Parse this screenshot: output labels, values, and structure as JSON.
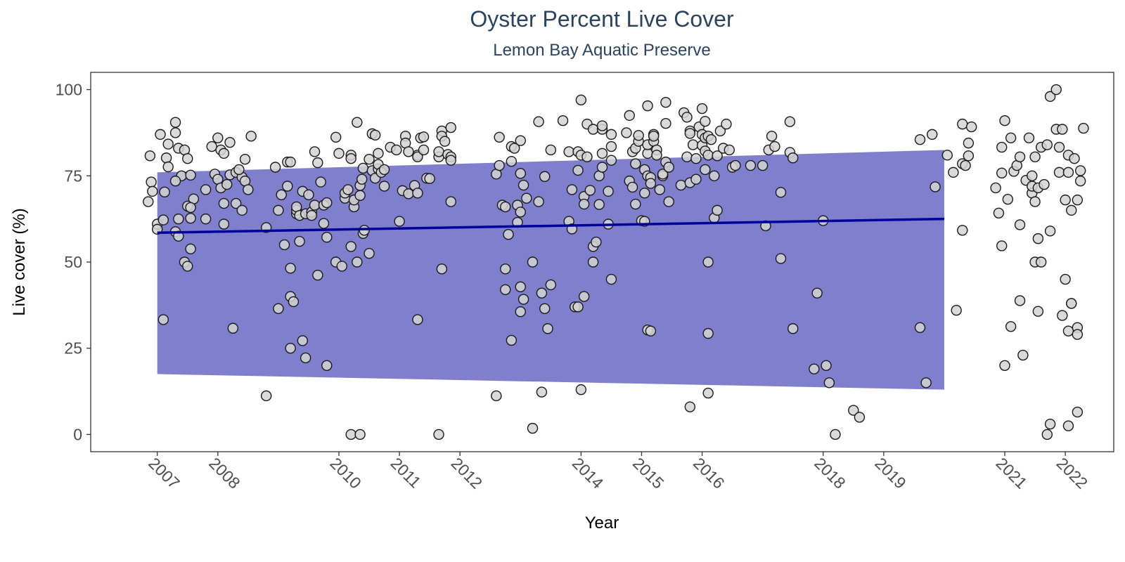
{
  "chart_data": {
    "type": "scatter",
    "title": "Oyster Percent Live Cover",
    "subtitle": "Lemon Bay Aquatic Preserve",
    "xlabel": "Year",
    "ylabel": "Live cover (%)",
    "xlim": [
      2005.9,
      2022.8
    ],
    "ylim": [
      -5,
      105
    ],
    "x_ticks": [
      2007,
      2008,
      2010,
      2011,
      2012,
      2014,
      2015,
      2016,
      2018,
      2019,
      2021,
      2022
    ],
    "y_ticks": [
      0,
      25,
      50,
      75,
      100
    ],
    "grid": false,
    "legend": "none",
    "colors": {
      "point_fill": "#d3d3d3",
      "point_stroke": "#1a1a1a",
      "ribbon": "#00009b",
      "trend": "#00009b",
      "title": "#2c435e"
    },
    "trend": {
      "x": [
        2007.0,
        2020.0
      ],
      "y": [
        58.5,
        62.5
      ]
    },
    "ribbon": {
      "x": [
        2007.0,
        2020.0
      ],
      "lower": [
        17.5,
        13.0
      ],
      "upper": [
        76.0,
        82.5
      ]
    },
    "points": [
      [
        2006.85,
        67.5
      ],
      [
        2006.88,
        80.8
      ],
      [
        2006.9,
        73.2
      ],
      [
        2006.92,
        70.5
      ],
      [
        2007.0,
        61.0
      ],
      [
        2007.0,
        59.5
      ],
      [
        2007.1,
        62.2
      ],
      [
        2007.12,
        70.3
      ],
      [
        2007.05,
        87.0
      ],
      [
        2007.15,
        80.2
      ],
      [
        2007.18,
        77.6
      ],
      [
        2007.18,
        84.2
      ],
      [
        2007.1,
        33.3
      ],
      [
        2007.3,
        90.5
      ],
      [
        2007.3,
        87.5
      ],
      [
        2007.35,
        83.0
      ],
      [
        2007.45,
        82.5
      ],
      [
        2007.5,
        80.0
      ],
      [
        2007.4,
        75.0
      ],
      [
        2007.55,
        75.2
      ],
      [
        2007.3,
        73.5
      ],
      [
        2007.6,
        68.3
      ],
      [
        2007.5,
        66.2
      ],
      [
        2007.55,
        65.8
      ],
      [
        2007.35,
        62.5
      ],
      [
        2007.55,
        62.7
      ],
      [
        2007.3,
        58.8
      ],
      [
        2007.35,
        57.5
      ],
      [
        2007.45,
        50.0
      ],
      [
        2007.5,
        48.8
      ],
      [
        2007.55,
        53.8
      ],
      [
        2007.9,
        83.5
      ],
      [
        2008.0,
        86.0
      ],
      [
        2008.05,
        82.5
      ],
      [
        2008.1,
        81.5
      ],
      [
        2008.2,
        84.7
      ],
      [
        2007.95,
        75.5
      ],
      [
        2008.0,
        74.0
      ],
      [
        2008.2,
        75.3
      ],
      [
        2008.3,
        76.0
      ],
      [
        2008.4,
        74.6
      ],
      [
        2008.45,
        73.5
      ],
      [
        2008.05,
        71.5
      ],
      [
        2008.15,
        72.5
      ],
      [
        2008.35,
        76.8
      ],
      [
        2007.8,
        71.0
      ],
      [
        2008.1,
        67.0
      ],
      [
        2008.3,
        67.0
      ],
      [
        2008.4,
        65.0
      ],
      [
        2007.8,
        62.5
      ],
      [
        2008.1,
        61.0
      ],
      [
        2008.25,
        30.8
      ],
      [
        2008.55,
        86.5
      ],
      [
        2008.5,
        71.0
      ],
      [
        2008.45,
        79.8
      ],
      [
        2008.8,
        60.0
      ],
      [
        2008.8,
        11.2
      ],
      [
        2008.95,
        77.5
      ],
      [
        2009.0,
        65.0
      ],
      [
        2009.05,
        69.5
      ],
      [
        2009.1,
        55.0
      ],
      [
        2009.15,
        72.0
      ],
      [
        2009.15,
        79.0
      ],
      [
        2009.2,
        79.0
      ],
      [
        2009.2,
        48.2
      ],
      [
        2009.3,
        64.0
      ],
      [
        2009.3,
        65.0
      ],
      [
        2009.3,
        66.0
      ],
      [
        2009.35,
        56.0
      ],
      [
        2009.35,
        63.5
      ],
      [
        2009.4,
        70.5
      ],
      [
        2009.45,
        64.0
      ],
      [
        2009.5,
        69.5
      ],
      [
        2009.55,
        64.5
      ],
      [
        2009.55,
        63.5
      ],
      [
        2009.6,
        66.5
      ],
      [
        2009.6,
        82.0
      ],
      [
        2009.65,
        46.2
      ],
      [
        2009.7,
        73.2
      ],
      [
        2009.75,
        61.2
      ],
      [
        2009.75,
        66.5
      ],
      [
        2009.8,
        67.2
      ],
      [
        2009.8,
        57.2
      ],
      [
        2009.0,
        36.5
      ],
      [
        2009.2,
        40.0
      ],
      [
        2009.25,
        38.5
      ],
      [
        2009.2,
        25.0
      ],
      [
        2009.4,
        27.2
      ],
      [
        2009.45,
        22.2
      ],
      [
        2009.8,
        20.0
      ],
      [
        2009.65,
        78.8
      ],
      [
        2009.95,
        86.2
      ],
      [
        2010.0,
        81.5
      ],
      [
        2009.95,
        50.0
      ],
      [
        2010.05,
        48.8
      ],
      [
        2010.1,
        68.5
      ],
      [
        2010.1,
        70.0
      ],
      [
        2010.15,
        71.0
      ],
      [
        2010.2,
        54.5
      ],
      [
        2010.2,
        81.0
      ],
      [
        2010.2,
        80.0
      ],
      [
        2010.25,
        66.0
      ],
      [
        2010.25,
        68.0
      ],
      [
        2010.3,
        50.0
      ],
      [
        2010.3,
        90.5
      ],
      [
        2010.35,
        72.2
      ],
      [
        2010.35,
        69.3
      ],
      [
        2010.38,
        74.0
      ],
      [
        2010.4,
        77.2
      ],
      [
        2010.4,
        58.3
      ],
      [
        2010.42,
        59.2
      ],
      [
        2010.5,
        79.8
      ],
      [
        2010.5,
        52.5
      ],
      [
        2010.55,
        87.2
      ],
      [
        2010.55,
        76.5
      ],
      [
        2010.6,
        74.3
      ],
      [
        2010.6,
        86.8
      ],
      [
        2010.65,
        81.5
      ],
      [
        2010.65,
        77.0
      ],
      [
        2010.65,
        78.3
      ],
      [
        2010.7,
        76.0
      ],
      [
        2010.75,
        72.0
      ],
      [
        2010.75,
        76.8
      ],
      [
        2010.2,
        0.0
      ],
      [
        2010.35,
        0.0
      ],
      [
        2010.85,
        83.3
      ],
      [
        2010.95,
        82.5
      ],
      [
        2011.0,
        61.8
      ],
      [
        2011.05,
        70.7
      ],
      [
        2011.1,
        86.5
      ],
      [
        2011.1,
        84.5
      ],
      [
        2011.15,
        82.0
      ],
      [
        2011.15,
        69.8
      ],
      [
        2011.25,
        72.2
      ],
      [
        2011.3,
        81.0
      ],
      [
        2011.3,
        80.5
      ],
      [
        2011.3,
        70.0
      ],
      [
        2011.35,
        86.0
      ],
      [
        2011.4,
        86.3
      ],
      [
        2011.4,
        82.5
      ],
      [
        2011.45,
        74.3
      ],
      [
        2011.5,
        74.2
      ],
      [
        2011.3,
        33.3
      ],
      [
        2011.65,
        80.5
      ],
      [
        2011.65,
        82.0
      ],
      [
        2011.7,
        88.0
      ],
      [
        2011.7,
        86.5
      ],
      [
        2011.75,
        85.0
      ],
      [
        2011.8,
        81.2
      ],
      [
        2011.85,
        80.5
      ],
      [
        2011.85,
        79.5
      ],
      [
        2011.85,
        89.0
      ],
      [
        2011.85,
        67.5
      ],
      [
        2011.7,
        48.0
      ],
      [
        2011.65,
        0.0
      ],
      [
        2012.6,
        75.5
      ],
      [
        2012.65,
        78.0
      ],
      [
        2012.65,
        86.2
      ],
      [
        2012.7,
        66.5
      ],
      [
        2012.75,
        66.0
      ],
      [
        2012.75,
        48.0
      ],
      [
        2012.75,
        42.0
      ],
      [
        2012.8,
        58.0
      ],
      [
        2012.85,
        79.2
      ],
      [
        2012.85,
        83.5
      ],
      [
        2012.85,
        27.3
      ],
      [
        2012.9,
        83.0
      ],
      [
        2012.95,
        61.5
      ],
      [
        2012.95,
        66.5
      ],
      [
        2013.0,
        75.7
      ],
      [
        2013.0,
        85.2
      ],
      [
        2013.0,
        64.5
      ],
      [
        2013.0,
        42.8
      ],
      [
        2013.0,
        35.6
      ],
      [
        2013.05,
        39.2
      ],
      [
        2013.05,
        72.3
      ],
      [
        2013.1,
        68.5
      ],
      [
        2013.2,
        50.0
      ],
      [
        2013.2,
        1.8
      ],
      [
        2013.3,
        90.7
      ],
      [
        2013.3,
        67.5
      ],
      [
        2013.35,
        41.0
      ],
      [
        2013.4,
        36.5
      ],
      [
        2013.4,
        74.8
      ],
      [
        2013.45,
        30.7
      ],
      [
        2013.5,
        43.4
      ],
      [
        2013.5,
        82.5
      ],
      [
        2012.6,
        11.2
      ],
      [
        2013.35,
        12.3
      ],
      [
        2013.7,
        91.0
      ],
      [
        2013.8,
        82.0
      ],
      [
        2013.8,
        61.8
      ],
      [
        2013.85,
        59.6
      ],
      [
        2013.85,
        71.0
      ],
      [
        2013.95,
        82.0
      ],
      [
        2013.9,
        37.0
      ],
      [
        2013.95,
        37.0
      ],
      [
        2014.0,
        97.0
      ],
      [
        2013.95,
        76.6
      ],
      [
        2014.0,
        81.0
      ],
      [
        2014.05,
        69.0
      ],
      [
        2014.05,
        66.8
      ],
      [
        2014.05,
        40.0
      ],
      [
        2014.1,
        80.5
      ],
      [
        2014.1,
        90.0
      ],
      [
        2014.15,
        70.8
      ],
      [
        2014.2,
        88.5
      ],
      [
        2014.2,
        54.5
      ],
      [
        2014.2,
        50.0
      ],
      [
        2014.25,
        55.8
      ],
      [
        2014.3,
        75.0
      ],
      [
        2014.3,
        66.7
      ],
      [
        2014.35,
        77.5
      ],
      [
        2014.35,
        81.5
      ],
      [
        2014.35,
        88.5
      ],
      [
        2014.35,
        89.5
      ],
      [
        2014.45,
        70.5
      ],
      [
        2014.45,
        61.0
      ],
      [
        2014.5,
        87.0
      ],
      [
        2014.5,
        79.5
      ],
      [
        2014.5,
        83.5
      ],
      [
        2014.5,
        45.0
      ],
      [
        2014.0,
        13.0
      ],
      [
        2014.75,
        87.5
      ],
      [
        2014.8,
        92.5
      ],
      [
        2014.8,
        73.5
      ],
      [
        2014.85,
        71.7
      ],
      [
        2014.85,
        82.0
      ],
      [
        2014.9,
        78.5
      ],
      [
        2014.9,
        83.0
      ],
      [
        2014.9,
        66.8
      ],
      [
        2014.95,
        85.0
      ],
      [
        2014.95,
        86.7
      ],
      [
        2015.0,
        62.0
      ],
      [
        2015.05,
        61.8
      ],
      [
        2015.05,
        70.0
      ],
      [
        2015.05,
        76.8
      ],
      [
        2015.1,
        81.5
      ],
      [
        2015.1,
        84.0
      ],
      [
        2015.1,
        95.3
      ],
      [
        2015.1,
        75.0
      ],
      [
        2015.15,
        74.5
      ],
      [
        2015.15,
        72.8
      ],
      [
        2015.2,
        85.0
      ],
      [
        2015.2,
        87.0
      ],
      [
        2015.2,
        86.5
      ],
      [
        2015.25,
        82.5
      ],
      [
        2015.25,
        81.0
      ],
      [
        2015.3,
        71.0
      ],
      [
        2015.35,
        75.0
      ],
      [
        2015.35,
        75.5
      ],
      [
        2015.4,
        96.3
      ],
      [
        2015.4,
        90.2
      ],
      [
        2015.4,
        79.0
      ],
      [
        2015.45,
        67.5
      ],
      [
        2015.45,
        77.5
      ],
      [
        2015.1,
        30.3
      ],
      [
        2015.15,
        30.0
      ],
      [
        2015.65,
        72.3
      ],
      [
        2015.7,
        93.3
      ],
      [
        2015.75,
        92.0
      ],
      [
        2015.75,
        80.5
      ],
      [
        2015.8,
        88.0
      ],
      [
        2015.8,
        87.3
      ],
      [
        2015.8,
        73.0
      ],
      [
        2015.8,
        8.0
      ],
      [
        2015.85,
        84.0
      ],
      [
        2015.9,
        74.0
      ],
      [
        2015.9,
        80.0
      ],
      [
        2015.95,
        89.2
      ],
      [
        2016.0,
        94.5
      ],
      [
        2016.0,
        87.0
      ],
      [
        2016.0,
        83.8
      ],
      [
        2016.05,
        86.0
      ],
      [
        2016.05,
        90.8
      ],
      [
        2016.05,
        76.8
      ],
      [
        2016.05,
        82.2
      ],
      [
        2016.1,
        86.5
      ],
      [
        2016.1,
        81.0
      ],
      [
        2016.1,
        50.0
      ],
      [
        2016.1,
        29.3
      ],
      [
        2016.1,
        12.0
      ],
      [
        2016.15,
        85.5
      ],
      [
        2016.2,
        75.0
      ],
      [
        2016.2,
        62.8
      ],
      [
        2016.25,
        65.0
      ],
      [
        2016.25,
        80.8
      ],
      [
        2016.3,
        88.0
      ],
      [
        2016.35,
        83.0
      ],
      [
        2016.4,
        90.0
      ],
      [
        2016.45,
        82.5
      ],
      [
        2016.5,
        77.5
      ],
      [
        2016.55,
        78.0
      ],
      [
        2016.8,
        78.0
      ],
      [
        2017.0,
        78.0
      ],
      [
        2017.05,
        60.5
      ],
      [
        2017.1,
        82.5
      ],
      [
        2017.15,
        86.5
      ],
      [
        2017.2,
        83.5
      ],
      [
        2017.3,
        51.0
      ],
      [
        2017.3,
        70.2
      ],
      [
        2017.45,
        81.8
      ],
      [
        2017.5,
        80.2
      ],
      [
        2017.45,
        90.7
      ],
      [
        2017.5,
        30.7
      ],
      [
        2017.85,
        19.0
      ],
      [
        2017.9,
        41.0
      ],
      [
        2018.0,
        62.0
      ],
      [
        2018.05,
        20.0
      ],
      [
        2018.1,
        15.0
      ],
      [
        2018.2,
        0.0
      ],
      [
        2018.5,
        7.0
      ],
      [
        2018.6,
        5.0
      ],
      [
        2019.6,
        85.5
      ],
      [
        2019.6,
        31.0
      ],
      [
        2019.7,
        15.0
      ],
      [
        2019.8,
        87.0
      ],
      [
        2019.85,
        71.8
      ],
      [
        2020.05,
        81.0
      ],
      [
        2020.15,
        76.0
      ],
      [
        2020.2,
        36.0
      ],
      [
        2020.3,
        78.5
      ],
      [
        2020.3,
        59.2
      ],
      [
        2020.3,
        90.0
      ],
      [
        2020.35,
        78.0
      ],
      [
        2020.4,
        80.8
      ],
      [
        2020.4,
        84.5
      ],
      [
        2020.45,
        89.2
      ],
      [
        2020.85,
        71.5
      ],
      [
        2020.9,
        64.2
      ],
      [
        2020.95,
        54.7
      ],
      [
        2020.95,
        75.8
      ],
      [
        2020.95,
        83.3
      ],
      [
        2021.0,
        91.0
      ],
      [
        2021.0,
        20.0
      ],
      [
        2021.05,
        68.2
      ],
      [
        2021.1,
        86.0
      ],
      [
        2021.1,
        31.3
      ],
      [
        2021.15,
        76.3
      ],
      [
        2021.2,
        78.0
      ],
      [
        2021.25,
        60.8
      ],
      [
        2021.25,
        80.5
      ],
      [
        2021.25,
        38.8
      ],
      [
        2021.3,
        23.0
      ],
      [
        2021.35,
        73.7
      ],
      [
        2021.4,
        86.0
      ],
      [
        2021.45,
        70.0
      ],
      [
        2021.45,
        72.0
      ],
      [
        2021.45,
        75.0
      ],
      [
        2021.5,
        50.0
      ],
      [
        2021.5,
        80.5
      ],
      [
        2021.5,
        67.5
      ],
      [
        2021.55,
        71.5
      ],
      [
        2021.55,
        56.8
      ],
      [
        2021.55,
        35.7
      ],
      [
        2021.6,
        83.3
      ],
      [
        2021.6,
        50.0
      ],
      [
        2021.65,
        72.5
      ],
      [
        2021.7,
        84.0
      ],
      [
        2021.7,
        0.0
      ],
      [
        2021.75,
        3.0
      ],
      [
        2021.75,
        59.0
      ],
      [
        2021.75,
        98.0
      ],
      [
        2021.85,
        100.0
      ],
      [
        2021.85,
        88.5
      ],
      [
        2021.9,
        83.3
      ],
      [
        2021.9,
        76.0
      ],
      [
        2021.95,
        88.5
      ],
      [
        2022.0,
        68.0
      ],
      [
        2022.0,
        45.0
      ],
      [
        2021.95,
        34.5
      ],
      [
        2022.05,
        81.0
      ],
      [
        2022.05,
        76.0
      ],
      [
        2022.1,
        38.0
      ],
      [
        2022.05,
        30.0
      ],
      [
        2022.05,
        2.5
      ],
      [
        2022.1,
        65.0
      ],
      [
        2022.1,
        38.0
      ],
      [
        2022.15,
        80.0
      ],
      [
        2022.2,
        68.0
      ],
      [
        2022.2,
        31.0
      ],
      [
        2022.2,
        29.0
      ],
      [
        2022.2,
        6.5
      ],
      [
        2022.25,
        73.5
      ],
      [
        2022.25,
        76.5
      ],
      [
        2022.3,
        88.8
      ]
    ]
  }
}
